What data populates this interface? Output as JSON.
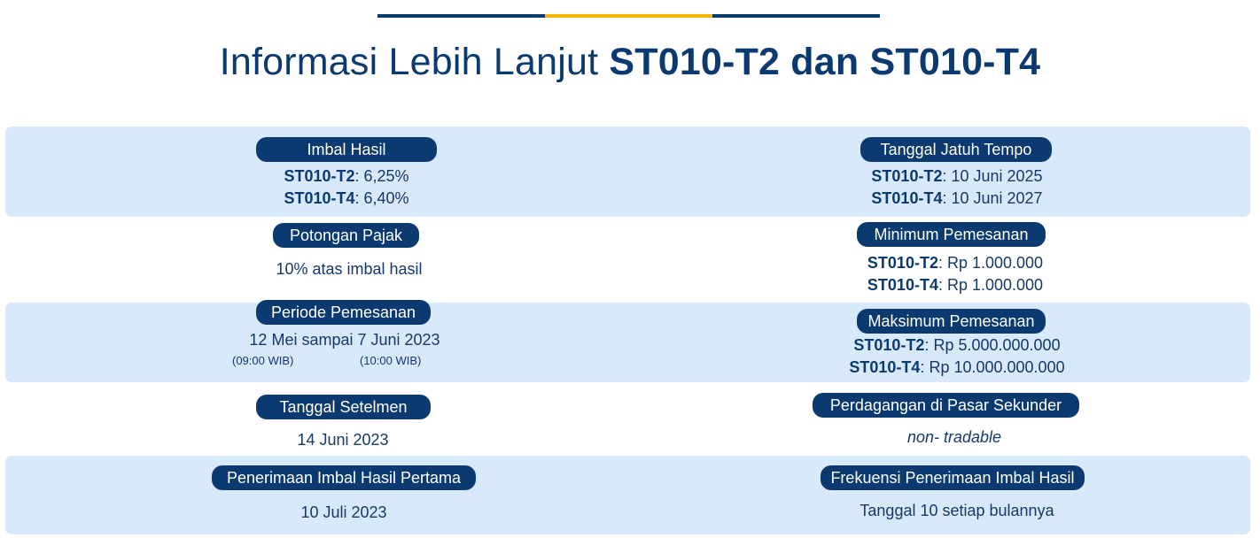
{
  "title": {
    "prefix": "Informasi Lebih Lanjut ",
    "bold": "ST010-T2 dan ST010-T4"
  },
  "colors": {
    "navy": "#0b3a70",
    "accent": "#f5b400",
    "band": "#d8e9fb"
  },
  "items": {
    "imbal_hasil": {
      "label": "Imbal Hasil",
      "t2_code": "ST010-T2",
      "t2_value": ": 6,25%",
      "t4_code": "ST010-T4",
      "t4_value": ": 6,40%"
    },
    "jatuh_tempo": {
      "label": "Tanggal Jatuh Tempo",
      "t2_code": "ST010-T2",
      "t2_value": ": 10 Juni 2025",
      "t4_code": "ST010-T4",
      "t4_value": ": 10 Juni 2027"
    },
    "potongan_pajak": {
      "label": "Potongan Pajak",
      "value": "10% atas imbal hasil"
    },
    "minimum_pemesanan": {
      "label": "Minimum Pemesanan",
      "t2_code": "ST010-T2",
      "t2_value": ": Rp 1.000.000",
      "t4_code": "ST010-T4",
      "t4_value": ": Rp 1.000.000"
    },
    "periode_pemesanan": {
      "label": "Periode Pemesanan",
      "value": "12 Mei sampai 7 Juni 2023",
      "start_time": "(09:00 WIB)",
      "end_time": "(10:00 WIB)"
    },
    "maksimum_pemesanan": {
      "label": "Maksimum Pemesanan",
      "t2_code": "ST010-T2",
      "t2_value": ": Rp 5.000.000.000",
      "t4_code": "ST010-T4",
      "t4_value": ": Rp 10.000.000.000"
    },
    "tanggal_setelmen": {
      "label": "Tanggal Setelmen",
      "value": "14 Juni 2023"
    },
    "pasar_sekunder": {
      "label": "Perdagangan di Pasar Sekunder",
      "value": "non- tradable"
    },
    "imbal_pertama": {
      "label": "Penerimaan Imbal Hasil Pertama",
      "value": "10 Juli 2023"
    },
    "frekuensi": {
      "label": "Frekuensi Penerimaan Imbal Hasil",
      "value": "Tanggal 10 setiap bulannya"
    }
  }
}
